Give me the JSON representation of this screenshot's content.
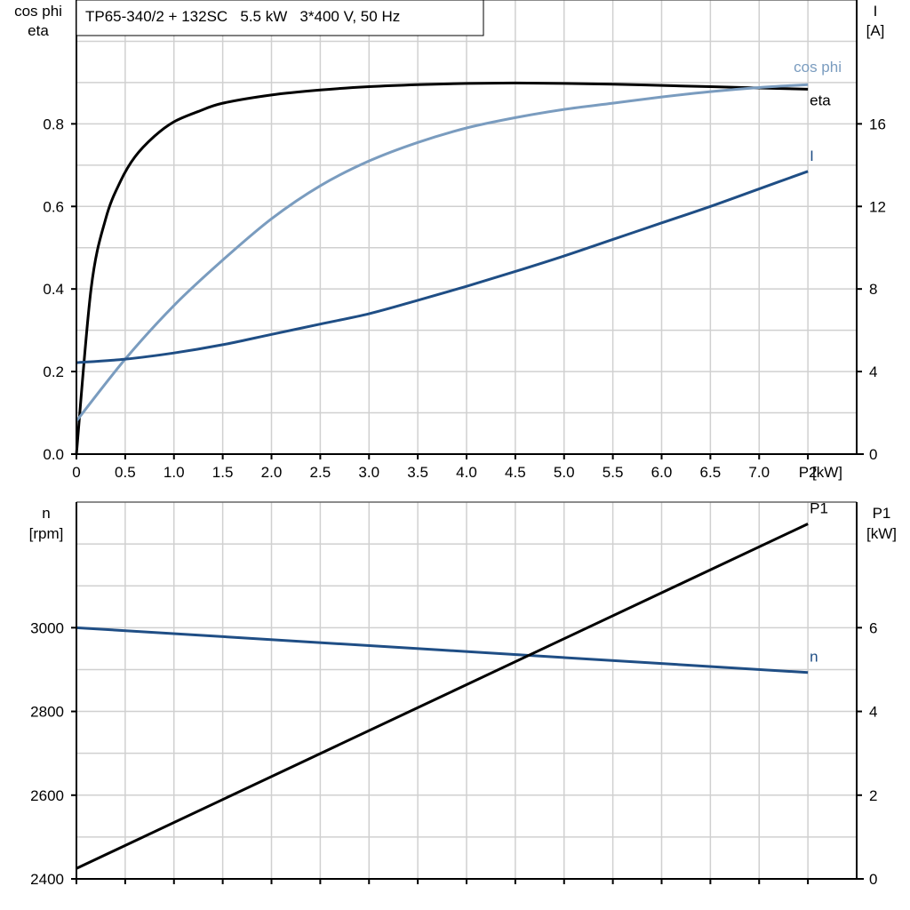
{
  "chart_data": [
    {
      "type": "line",
      "title": "TP65-340/2 + 132SC   5.5 kW   3*400 V, 50 Hz",
      "xlabel": "P2 [kW]",
      "x_tick_labels": [
        "0",
        "0.5",
        "1.0",
        "1.5",
        "2.0",
        "2.5",
        "3.0",
        "3.5",
        "4.0",
        "4.5",
        "5.0",
        "5.5",
        "6.0",
        "6.5",
        "7.0",
        "P2"
      ],
      "x_ticks": [
        0,
        0.5,
        1,
        1.5,
        2,
        2.5,
        3,
        3.5,
        4,
        4.5,
        5,
        5.5,
        6,
        6.5,
        7,
        7.5
      ],
      "xunit": "[kW]",
      "xlim": [
        0,
        8
      ],
      "ylabel_left": [
        "cos phi",
        "eta"
      ],
      "ylim_left": [
        0,
        1.1
      ],
      "y_ticks_left": [
        "0.0",
        "0.2",
        "0.4",
        "0.6",
        "0.8"
      ],
      "ylabel_right": [
        "I",
        "[A]"
      ],
      "ylim_right": [
        0,
        22
      ],
      "y_ticks_right": [
        "0",
        "4",
        "8",
        "12",
        "16"
      ],
      "grid": true,
      "series": [
        {
          "name": "eta",
          "axis": "left",
          "color": "#000000",
          "x": [
            0,
            0.15,
            0.3,
            0.45,
            0.6,
            0.8,
            1.0,
            1.25,
            1.5,
            2.0,
            2.5,
            3.0,
            3.5,
            4.0,
            4.5,
            5.0,
            5.5,
            6.0,
            6.5,
            7.0,
            7.5
          ],
          "y": [
            0,
            0.4,
            0.57,
            0.66,
            0.72,
            0.77,
            0.805,
            0.83,
            0.85,
            0.87,
            0.882,
            0.89,
            0.895,
            0.898,
            0.899,
            0.898,
            0.896,
            0.893,
            0.89,
            0.887,
            0.884
          ]
        },
        {
          "name": "cos phi",
          "axis": "left",
          "color": "#7a9cbf",
          "x": [
            0,
            0.5,
            1.0,
            1.5,
            2.0,
            2.5,
            3.0,
            3.5,
            4.0,
            4.5,
            5.0,
            5.5,
            6.0,
            6.5,
            7.0,
            7.5
          ],
          "y": [
            0.08,
            0.23,
            0.36,
            0.47,
            0.57,
            0.65,
            0.71,
            0.755,
            0.79,
            0.815,
            0.835,
            0.85,
            0.865,
            0.878,
            0.888,
            0.895
          ]
        },
        {
          "name": "I",
          "axis": "right",
          "color": "#1f4e85",
          "x": [
            0,
            0.5,
            1.0,
            1.5,
            2.0,
            2.5,
            3.0,
            3.5,
            4.0,
            4.5,
            5.0,
            5.5,
            6.0,
            6.5,
            7.0,
            7.5
          ],
          "y": [
            4.43,
            4.6,
            4.9,
            5.3,
            5.8,
            6.3,
            6.8,
            7.45,
            8.13,
            8.85,
            9.6,
            10.4,
            11.2,
            12.0,
            12.85,
            13.7
          ]
        }
      ]
    },
    {
      "type": "line",
      "xlim": [
        0,
        8
      ],
      "x_ticks": [
        0,
        0.5,
        1,
        1.5,
        2,
        2.5,
        3,
        3.5,
        4,
        4.5,
        5,
        5.5,
        6,
        6.5,
        7,
        7.5
      ],
      "ylabel_left": [
        "n",
        "[rpm]"
      ],
      "ylim_left": [
        2400,
        3300
      ],
      "y_ticks_left": [
        "2400",
        "2600",
        "2800",
        "3000"
      ],
      "ylabel_right": [
        "P1",
        "[kW]"
      ],
      "ylim_right": [
        0,
        9
      ],
      "y_ticks_right": [
        "0",
        "2",
        "4",
        "6"
      ],
      "grid": true,
      "series": [
        {
          "name": "n",
          "axis": "left",
          "color": "#1f4e85",
          "x": [
            0,
            7.5
          ],
          "y": [
            3000,
            2893
          ]
        },
        {
          "name": "P1",
          "axis": "right",
          "color": "#000000",
          "x": [
            0,
            7.5
          ],
          "y": [
            0.25,
            8.48
          ]
        }
      ]
    }
  ]
}
